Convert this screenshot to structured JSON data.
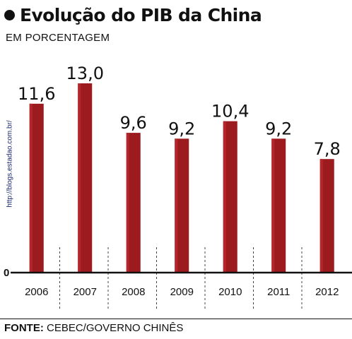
{
  "header": {
    "title": "Evolução do PIB da China",
    "subtitle": "EM PORCENTAGEM",
    "side_url": "http://blogs.estadao.com.br/"
  },
  "footer": {
    "source_label": "FONTE:",
    "source_text": " CEBEC/GOVERNO CHINÊS"
  },
  "colors": {
    "bar": "#9b1b1f",
    "bar_highlight": "#b3262b",
    "axis": "#111111",
    "divider": "#444444"
  },
  "chart_data": {
    "type": "bar",
    "title": "Evolução do PIB da China",
    "subtitle": "EM PORCENTAGEM",
    "xlabel": "",
    "ylabel": "",
    "categories": [
      "2006",
      "2007",
      "2008",
      "2009",
      "2010",
      "2011",
      "2012"
    ],
    "values": [
      11.6,
      13.0,
      9.6,
      9.2,
      10.4,
      9.2,
      7.8
    ],
    "value_labels": [
      "11,6",
      "13,0",
      "9,6",
      "9,2",
      "10,4",
      "9,2",
      "7,8"
    ],
    "baseline_label": "0",
    "ylim": [
      0,
      13.0
    ],
    "grid": false,
    "legend": "none"
  }
}
